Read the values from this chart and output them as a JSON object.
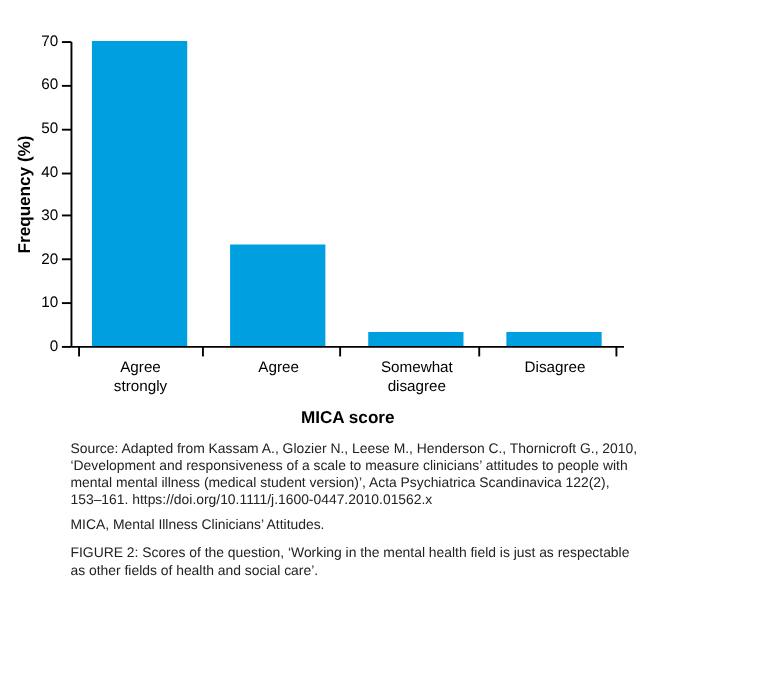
{
  "chart_data": {
    "type": "bar",
    "xlabel": "MICA score",
    "ylabel": "Frequency (%)",
    "categories": [
      "Agree strongly",
      "Agree",
      "Somewhat disagree",
      "Disagree"
    ],
    "values": [
      70,
      23.3,
      3.2,
      3.2
    ],
    "color": "#009fdf",
    "ylim": [
      0,
      70
    ],
    "yticks": [
      0,
      10,
      20,
      30,
      40,
      50,
      60,
      70
    ],
    "grid": false,
    "annotations": [
      "Source: Adapted from Kassam A., Glozier N., Leese M., Henderson C., Thornicroft G., 2010, ‘Development and responsiveness of a scale to measure clinicians’ attitudes to people with mental mental illness (medical student version)’, Acta Psychiatrica Scandinavica 122(2), 153–161. https://doi.org/10.1111/j.1600-0447.2010.01562.x",
      "MICA, Mental Illness Clinicians’ Attitudes.",
      "FIGURE 2: Scores of the question, ‘Working in the mental health field is just as respectable as other fields of health and social care’."
    ]
  }
}
